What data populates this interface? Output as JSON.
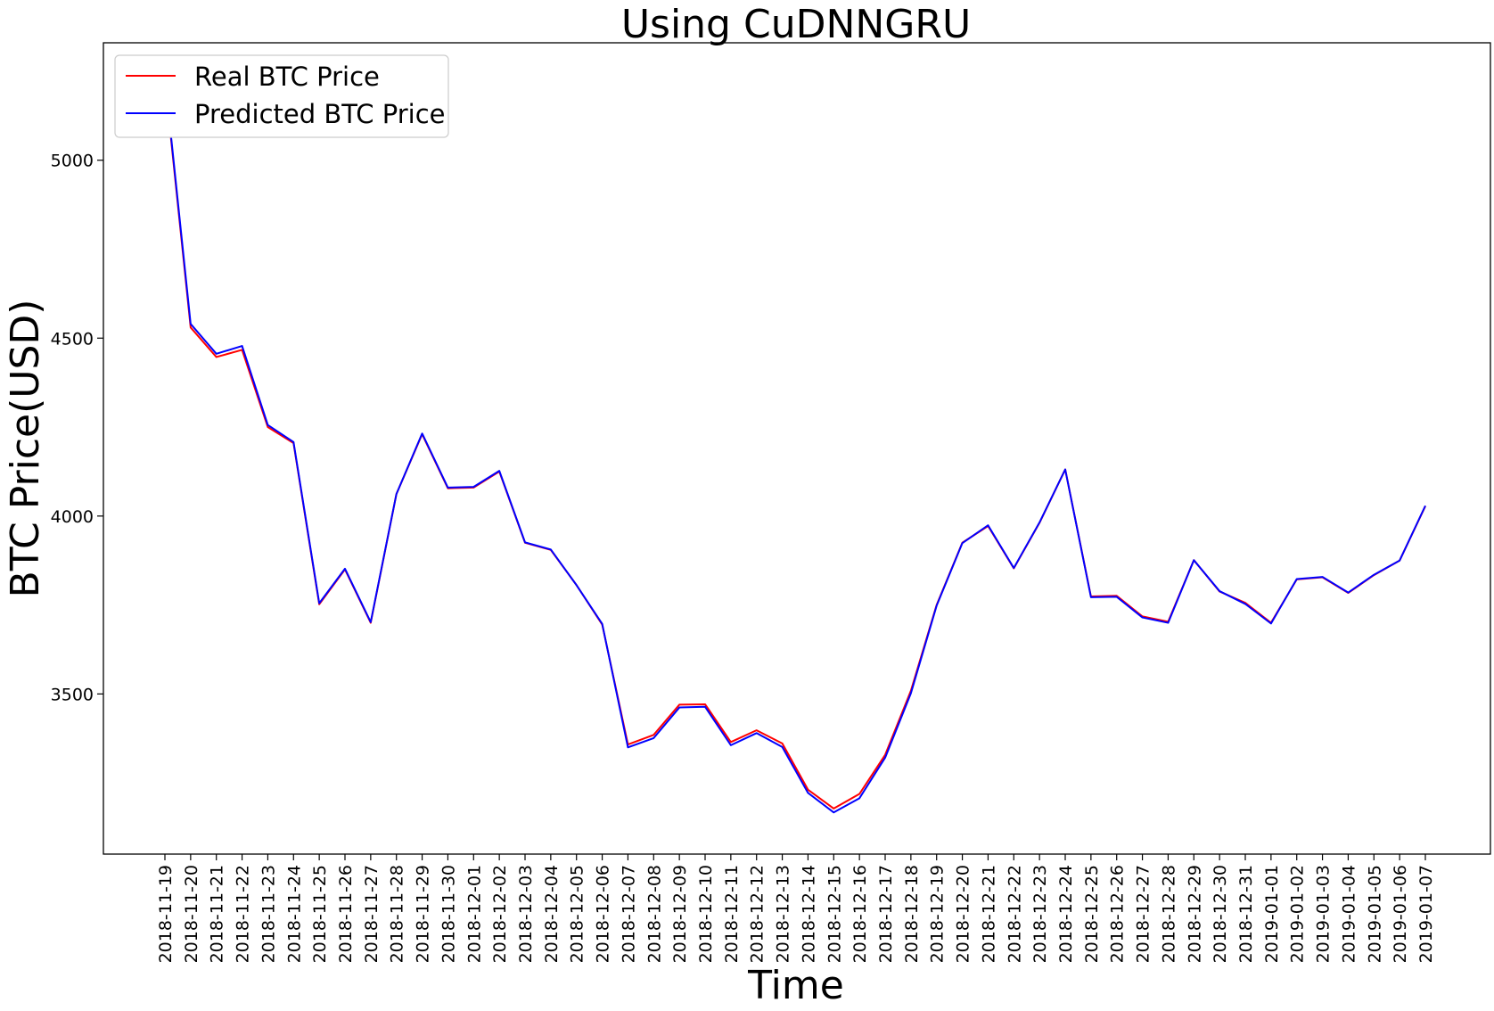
{
  "chart_data": {
    "type": "line",
    "title": "Using CuDNNGRU",
    "xlabel": "Time",
    "ylabel": "BTC Price(USD)",
    "ylim": [
      3050,
      5330
    ],
    "yticks": [
      3500,
      4000,
      4500,
      5000
    ],
    "grid": false,
    "legend_position": "top-left",
    "x": [
      "2018-11-19",
      "2018-11-20",
      "2018-11-21",
      "2018-11-22",
      "2018-11-23",
      "2018-11-24",
      "2018-11-25",
      "2018-11-26",
      "2018-11-27",
      "2018-11-28",
      "2018-11-29",
      "2018-11-30",
      "2018-12-01",
      "2018-12-02",
      "2018-12-03",
      "2018-12-04",
      "2018-12-05",
      "2018-12-06",
      "2018-12-07",
      "2018-12-08",
      "2018-12-09",
      "2018-12-10",
      "2018-12-11",
      "2018-12-12",
      "2018-12-13",
      "2018-12-14",
      "2018-12-15",
      "2018-12-16",
      "2018-12-17",
      "2018-12-18",
      "2018-12-19",
      "2018-12-20",
      "2018-12-21",
      "2018-12-22",
      "2018-12-23",
      "2018-12-24",
      "2018-12-25",
      "2018-12-26",
      "2018-12-27",
      "2018-12-28",
      "2018-12-29",
      "2018-12-30",
      "2018-12-31",
      "2019-01-01",
      "2019-01-02",
      "2019-01-03",
      "2019-01-04",
      "2019-01-05",
      "2019-01-06",
      "2019-01-07"
    ],
    "series": [
      {
        "name": "Real BTC Price",
        "color": "#ff0000",
        "values": [
          5225,
          4530,
          4447,
          4467,
          4250,
          4205,
          3752,
          3850,
          3700,
          4062,
          4230,
          4078,
          4080,
          4125,
          3925,
          3905,
          3806,
          3695,
          3358,
          3385,
          3470,
          3471,
          3365,
          3398,
          3361,
          3231,
          3178,
          3219,
          3329,
          3509,
          3750,
          3925,
          3972,
          3853,
          3981,
          4131,
          3774,
          3776,
          3718,
          3703,
          3876,
          3788,
          3756,
          3700,
          3822,
          3828,
          3784,
          3834,
          3875,
          4028
        ]
      },
      {
        "name": "Predicted BTC Price",
        "color": "#0000ff",
        "values": [
          5232,
          4540,
          4456,
          4478,
          4256,
          4208,
          3755,
          3852,
          3702,
          4062,
          4232,
          4080,
          4082,
          4127,
          3926,
          3906,
          3806,
          3697,
          3350,
          3376,
          3462,
          3464,
          3356,
          3390,
          3351,
          3222,
          3167,
          3207,
          3321,
          3502,
          3748,
          3924,
          3974,
          3854,
          3982,
          4131,
          3772,
          3773,
          3715,
          3700,
          3876,
          3789,
          3753,
          3698,
          3823,
          3829,
          3785,
          3835,
          3875,
          4029
        ]
      }
    ]
  }
}
